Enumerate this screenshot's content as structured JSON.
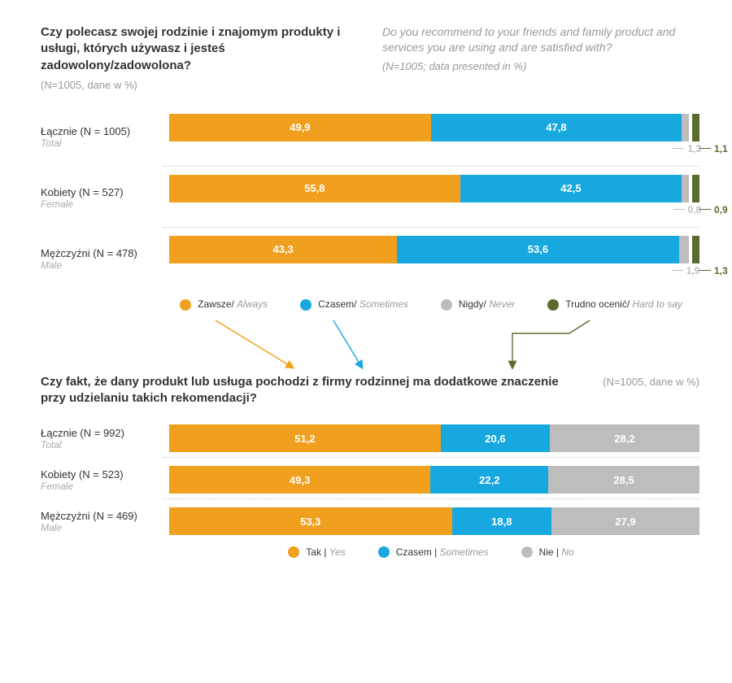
{
  "colors": {
    "always": "#f0a01e",
    "sometimes": "#17a8e0",
    "never": "#bdbdbd",
    "hard": "#5a6b2f",
    "text_muted": "#999999"
  },
  "q1": {
    "title_pl": "Czy polecasz swojej rodzinie i znajomym produkty i usługi, których używasz i jesteś zadowolony/zadowolona?",
    "subtitle_pl": "(N=1005, dane w %)",
    "title_en": "Do you recommend to your friends and family product and services you are using and are satisfied with?",
    "subtitle_en": "(N=1005; data presented in %)",
    "rows": [
      {
        "label_pl": "Łącznie (N = 1005)",
        "label_en": "Total",
        "vals": [
          49.9,
          47.8,
          1.3,
          1.1
        ],
        "labels": [
          "49,9",
          "47,8",
          "1,3",
          "1,1"
        ]
      },
      {
        "label_pl": "Kobiety (N = 527)",
        "label_en": "Female",
        "vals": [
          55.8,
          42.5,
          0.8,
          0.9
        ],
        "labels": [
          "55,8",
          "42,5",
          "0,8",
          "0,9"
        ]
      },
      {
        "label_pl": "Mężczyźni (N = 478)",
        "label_en": "Male",
        "vals": [
          43.3,
          53.6,
          1.9,
          1.3
        ],
        "labels": [
          "43,3",
          "53,6",
          "1,9",
          "1,3"
        ]
      }
    ],
    "legend": [
      {
        "pl": "Zawsze",
        "en": "Always",
        "color": "#f0a01e"
      },
      {
        "pl": "Czasem",
        "en": "Sometimes",
        "color": "#17a8e0"
      },
      {
        "pl": "Nigdy",
        "en": "Never",
        "color": "#bdbdbd"
      },
      {
        "pl": "Trudno ocenić",
        "en": "Hard to say",
        "color": "#5a6b2f"
      }
    ]
  },
  "q2": {
    "title_pl": "Czy fakt, że dany produkt lub usługa pochodzi z firmy rodzinnej ma dodatkowe znaczenie przy udzielaniu takich rekomendacji?",
    "subtitle": "(N=1005, dane w %)",
    "rows": [
      {
        "label_pl": "Łącznie (N = 992)",
        "label_en": "Total",
        "vals": [
          51.2,
          20.6,
          28.2
        ],
        "labels": [
          "51,2",
          "20,6",
          "28,2"
        ]
      },
      {
        "label_pl": "Kobiety (N = 523)",
        "label_en": "Female",
        "vals": [
          49.3,
          22.2,
          28.5
        ],
        "labels": [
          "49,3",
          "22,2",
          "28,5"
        ]
      },
      {
        "label_pl": "Mężczyźni (N = 469)",
        "label_en": "Male",
        "vals": [
          53.3,
          18.8,
          27.9
        ],
        "labels": [
          "53,3",
          "18,8",
          "27,9"
        ]
      }
    ],
    "legend": [
      {
        "pl": "Tak",
        "en": "Yes",
        "color": "#f0a01e"
      },
      {
        "pl": "Czasem",
        "en": "Sometimes",
        "color": "#17a8e0"
      },
      {
        "pl": "Nie",
        "en": "No",
        "color": "#bdbdbd"
      }
    ]
  }
}
